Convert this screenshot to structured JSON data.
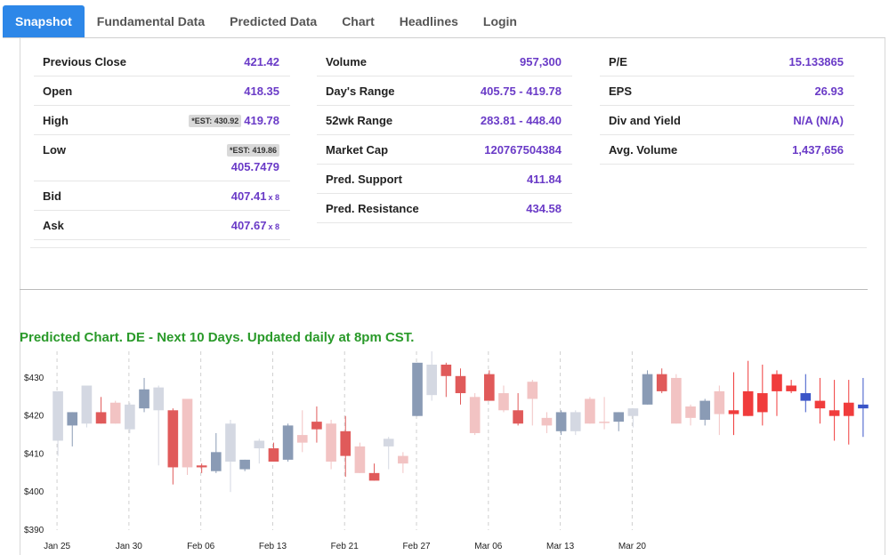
{
  "tabs": [
    {
      "label": "Snapshot",
      "active": true
    },
    {
      "label": "Fundamental Data",
      "active": false
    },
    {
      "label": "Predicted Data",
      "active": false
    },
    {
      "label": "Chart",
      "active": false
    },
    {
      "label": "Headlines",
      "active": false
    },
    {
      "label": "Login",
      "active": false
    }
  ],
  "snapshot": {
    "previous_close": {
      "label": "Previous Close",
      "value": "421.42"
    },
    "open": {
      "label": "Open",
      "value": "418.35"
    },
    "high": {
      "label": "High",
      "est": "*EST: 430.92",
      "value": "419.78"
    },
    "low": {
      "label": "Low",
      "est": "*EST: 419.86",
      "value": "405.7479"
    },
    "bid": {
      "label": "Bid",
      "value": "407.41",
      "size": "x 8"
    },
    "ask": {
      "label": "Ask",
      "value": "407.67",
      "size": "x 8"
    },
    "volume": {
      "label": "Volume",
      "value": "957,300"
    },
    "days_range": {
      "label": "Day's Range",
      "value": "405.75 - 419.78"
    },
    "week52_range": {
      "label": "52wk Range",
      "value": "283.81 - 448.40"
    },
    "market_cap": {
      "label": "Market Cap",
      "value": "120767504384"
    },
    "pred_support": {
      "label": "Pred. Support",
      "value": "411.84"
    },
    "pred_resistance": {
      "label": "Pred. Resistance",
      "value": "434.58"
    },
    "pe": {
      "label": "P/E",
      "value": "15.133865"
    },
    "eps": {
      "label": "EPS",
      "value": "26.93"
    },
    "div_yield": {
      "label": "Div and Yield",
      "value": "N/A (N/A)"
    },
    "avg_volume": {
      "label": "Avg. Volume",
      "value": "1,437,656"
    }
  },
  "chart_title": "Predicted Chart. DE - Next 10 Days. Updated daily at 8pm CST.",
  "chart_data": {
    "type": "candlestick",
    "title": "Predicted Chart. DE - Next 10 Days. Updated daily at 8pm CST.",
    "ylim": [
      390,
      437
    ],
    "y_ticks": [
      "$390",
      "$400",
      "$410",
      "$420",
      "$430"
    ],
    "y_tick_values": [
      390,
      400,
      410,
      420,
      430
    ],
    "x_ticks": [
      "Jan 25",
      "Jan 30",
      "Feb 06",
      "Feb 13",
      "Feb 21",
      "Feb 27",
      "Mar 06",
      "Mar 13",
      "Mar 20"
    ],
    "x_tick_index": [
      0,
      5,
      10,
      15,
      20,
      25,
      30,
      35,
      40
    ],
    "grid": true,
    "colors": {
      "up_light": "#d4d8e2",
      "up_dark": "#8a9bb5",
      "down_light": "#f2c3c3",
      "down_dark": "#e05a5a",
      "pred_down": "#f03c3c",
      "pred_up": "#3a55c8"
    },
    "candles": [
      {
        "o": 413.5,
        "h": 426.5,
        "l": 409.5,
        "c": 426.5,
        "style": "up_light"
      },
      {
        "o": 417.5,
        "h": 421.0,
        "l": 412.0,
        "c": 421.0,
        "style": "up_dark"
      },
      {
        "o": 418.0,
        "h": 428.0,
        "l": 417.0,
        "c": 428.0,
        "style": "up_light"
      },
      {
        "o": 421.0,
        "h": 425.0,
        "l": 418.0,
        "c": 418.0,
        "style": "down_dark"
      },
      {
        "o": 423.5,
        "h": 424.0,
        "l": 418.0,
        "c": 418.0,
        "style": "down_light"
      },
      {
        "o": 416.5,
        "h": 423.5,
        "l": 415.5,
        "c": 423.0,
        "style": "up_light"
      },
      {
        "o": 422.0,
        "h": 430.0,
        "l": 421.0,
        "c": 427.0,
        "style": "up_dark"
      },
      {
        "o": 421.5,
        "h": 428.0,
        "l": 407.0,
        "c": 427.5,
        "style": "up_light"
      },
      {
        "o": 421.5,
        "h": 422.0,
        "l": 402.0,
        "c": 406.5,
        "style": "down_dark"
      },
      {
        "o": 424.5,
        "h": 424.5,
        "l": 404.5,
        "c": 406.5,
        "style": "down_light"
      },
      {
        "o": 407.0,
        "h": 407.5,
        "l": 405.0,
        "c": 406.5,
        "style": "down_dark"
      },
      {
        "o": 405.5,
        "h": 415.5,
        "l": 405.0,
        "c": 410.5,
        "style": "up_dark"
      },
      {
        "o": 408.0,
        "h": 419.0,
        "l": 400.0,
        "c": 418.0,
        "style": "up_light"
      },
      {
        "o": 406.0,
        "h": 408.5,
        "l": 405.5,
        "c": 408.5,
        "style": "up_dark"
      },
      {
        "o": 411.5,
        "h": 414.0,
        "l": 407.5,
        "c": 413.5,
        "style": "up_light"
      },
      {
        "o": 411.5,
        "h": 413.0,
        "l": 408.0,
        "c": 408.0,
        "style": "down_dark"
      },
      {
        "o": 408.5,
        "h": 418.0,
        "l": 408.0,
        "c": 417.5,
        "style": "up_dark"
      },
      {
        "o": 415.0,
        "h": 421.5,
        "l": 410.5,
        "c": 413.0,
        "style": "down_light"
      },
      {
        "o": 416.5,
        "h": 422.5,
        "l": 413.0,
        "c": 418.5,
        "style": "down_dark"
      },
      {
        "o": 418.0,
        "h": 419.0,
        "l": 406.0,
        "c": 408.0,
        "style": "down_light"
      },
      {
        "o": 416.0,
        "h": 420.0,
        "l": 404.0,
        "c": 409.5,
        "style": "down_dark"
      },
      {
        "o": 412.0,
        "h": 413.0,
        "l": 405.0,
        "c": 405.0,
        "style": "down_light"
      },
      {
        "o": 405.0,
        "h": 407.5,
        "l": 403.0,
        "c": 403.0,
        "style": "down_dark"
      },
      {
        "o": 412.0,
        "h": 414.5,
        "l": 406.0,
        "c": 414.0,
        "style": "up_light"
      },
      {
        "o": 409.5,
        "h": 410.5,
        "l": 405.0,
        "c": 407.5,
        "style": "down_light"
      },
      {
        "o": 420.0,
        "h": 434.0,
        "l": 420.0,
        "c": 434.0,
        "style": "up_dark"
      },
      {
        "o": 433.5,
        "h": 437.0,
        "l": 424.0,
        "c": 425.5,
        "style": "up_light"
      },
      {
        "o": 433.5,
        "h": 434.0,
        "l": 425.0,
        "c": 430.5,
        "style": "down_dark"
      },
      {
        "o": 430.5,
        "h": 432.5,
        "l": 423.0,
        "c": 426.0,
        "style": "down_dark"
      },
      {
        "o": 425.0,
        "h": 426.0,
        "l": 415.0,
        "c": 415.5,
        "style": "down_light"
      },
      {
        "o": 431.0,
        "h": 432.0,
        "l": 424.0,
        "c": 424.0,
        "style": "down_dark"
      },
      {
        "o": 426.0,
        "h": 428.0,
        "l": 421.0,
        "c": 421.5,
        "style": "down_light"
      },
      {
        "o": 421.5,
        "h": 426.0,
        "l": 417.5,
        "c": 418.0,
        "style": "down_dark"
      },
      {
        "o": 429.0,
        "h": 429.5,
        "l": 417.5,
        "c": 424.5,
        "style": "down_light"
      },
      {
        "o": 419.5,
        "h": 421.0,
        "l": 415.5,
        "c": 417.5,
        "style": "down_light"
      },
      {
        "o": 416.0,
        "h": 421.5,
        "l": 415.0,
        "c": 421.0,
        "style": "up_dark"
      },
      {
        "o": 416.0,
        "h": 421.5,
        "l": 415.0,
        "c": 421.0,
        "style": "up_light"
      },
      {
        "o": 424.5,
        "h": 425.0,
        "l": 418.0,
        "c": 418.0,
        "style": "down_light"
      },
      {
        "o": 418.5,
        "h": 425.0,
        "l": 416.5,
        "c": 418.5,
        "style": "down_light"
      },
      {
        "o": 418.5,
        "h": 421.0,
        "l": 416.0,
        "c": 421.0,
        "style": "up_dark"
      },
      {
        "o": 420.0,
        "h": 422.0,
        "l": 417.0,
        "c": 422.0,
        "style": "up_light"
      },
      {
        "o": 423.0,
        "h": 432.0,
        "l": 423.0,
        "c": 431.0,
        "style": "up_dark"
      },
      {
        "o": 431.0,
        "h": 432.5,
        "l": 426.0,
        "c": 426.5,
        "style": "down_dark"
      },
      {
        "o": 430.0,
        "h": 431.0,
        "l": 418.0,
        "c": 418.0,
        "style": "down_light"
      },
      {
        "o": 422.5,
        "h": 423.0,
        "l": 417.5,
        "c": 419.5,
        "style": "down_light"
      },
      {
        "o": 419.0,
        "h": 424.5,
        "l": 417.5,
        "c": 424.0,
        "style": "up_dark"
      },
      {
        "o": 426.5,
        "h": 428.0,
        "l": 415.0,
        "c": 420.5,
        "style": "down_light"
      },
      {
        "o": 421.5,
        "h": 431.5,
        "l": 415.0,
        "c": 420.5,
        "style": "pred_down"
      },
      {
        "o": 426.5,
        "h": 434.5,
        "l": 420.0,
        "c": 420.0,
        "style": "pred_down"
      },
      {
        "o": 426.0,
        "h": 433.5,
        "l": 417.5,
        "c": 421.0,
        "style": "pred_down"
      },
      {
        "o": 431.0,
        "h": 432.0,
        "l": 420.0,
        "c": 426.5,
        "style": "pred_down"
      },
      {
        "o": 428.0,
        "h": 429.5,
        "l": 426.0,
        "c": 426.5,
        "style": "pred_down"
      },
      {
        "o": 424.0,
        "h": 431.0,
        "l": 421.0,
        "c": 426.0,
        "style": "pred_up"
      },
      {
        "o": 424.0,
        "h": 430.0,
        "l": 418.0,
        "c": 422.0,
        "style": "pred_down"
      },
      {
        "o": 421.5,
        "h": 429.5,
        "l": 413.5,
        "c": 420.0,
        "style": "pred_down"
      },
      {
        "o": 423.5,
        "h": 429.5,
        "l": 412.5,
        "c": 420.0,
        "style": "pred_down"
      },
      {
        "o": 422.0,
        "h": 430.0,
        "l": 414.5,
        "c": 423.0,
        "style": "pred_up"
      }
    ]
  }
}
